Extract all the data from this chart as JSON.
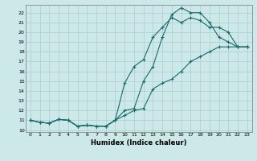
{
  "xlabel": "Humidex (Indice chaleur)",
  "xlim": [
    -0.5,
    23.5
  ],
  "ylim": [
    9.8,
    22.8
  ],
  "xticks": [
    0,
    1,
    2,
    3,
    4,
    5,
    6,
    7,
    8,
    9,
    10,
    11,
    12,
    13,
    14,
    15,
    16,
    17,
    18,
    19,
    20,
    21,
    22,
    23
  ],
  "yticks": [
    10,
    11,
    12,
    13,
    14,
    15,
    16,
    17,
    18,
    19,
    20,
    21,
    22
  ],
  "bg_color": "#cce8e8",
  "grid_color": "#aacece",
  "line_color": "#1a6b6b",
  "line1_x": [
    0,
    1,
    2,
    3,
    4,
    5,
    6,
    7,
    8,
    9,
    10,
    11,
    12,
    13,
    14,
    15,
    16,
    17,
    18,
    19,
    20,
    21,
    22,
    23
  ],
  "line1_y": [
    11,
    10.8,
    10.7,
    11.1,
    11.0,
    10.4,
    10.5,
    10.4,
    10.4,
    11.0,
    11.5,
    12.0,
    12.2,
    14.2,
    14.8,
    15.2,
    16.0,
    17.0,
    17.5,
    18.0,
    18.5,
    18.5,
    18.5,
    18.5
  ],
  "line2_x": [
    0,
    1,
    2,
    3,
    4,
    5,
    6,
    7,
    8,
    9,
    10,
    11,
    12,
    13,
    14,
    15,
    16,
    17,
    18,
    19,
    20,
    21,
    22,
    23
  ],
  "line2_y": [
    11,
    10.8,
    10.7,
    11.1,
    11.0,
    10.4,
    10.5,
    10.4,
    10.4,
    11.0,
    12.0,
    12.2,
    15.0,
    16.5,
    19.5,
    21.8,
    22.5,
    22.0,
    22.0,
    21.0,
    19.5,
    19.0,
    18.5,
    18.5
  ],
  "line3_x": [
    0,
    1,
    2,
    3,
    4,
    5,
    6,
    7,
    8,
    9,
    10,
    11,
    12,
    13,
    14,
    15,
    16,
    17,
    18,
    19,
    20,
    21,
    22,
    23
  ],
  "line3_y": [
    11,
    10.8,
    10.7,
    11.1,
    11.0,
    10.4,
    10.5,
    10.4,
    10.4,
    11.0,
    14.8,
    16.5,
    17.2,
    19.5,
    20.5,
    21.5,
    21.0,
    21.5,
    21.2,
    20.5,
    20.5,
    20.0,
    18.5,
    18.5
  ]
}
